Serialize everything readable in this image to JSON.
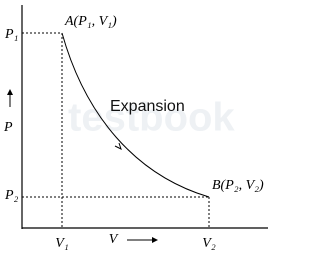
{
  "axes": {
    "y_label": "P",
    "x_label": "V"
  },
  "y_marks": [
    "P₁",
    "P₂"
  ],
  "x_marks": [
    "V₁",
    "V₂"
  ],
  "points": [
    {
      "label": "A(P₁, V₁)"
    },
    {
      "label": "B(P₂, V₂)"
    }
  ],
  "process": "Expansion",
  "watermark": "testbook"
}
